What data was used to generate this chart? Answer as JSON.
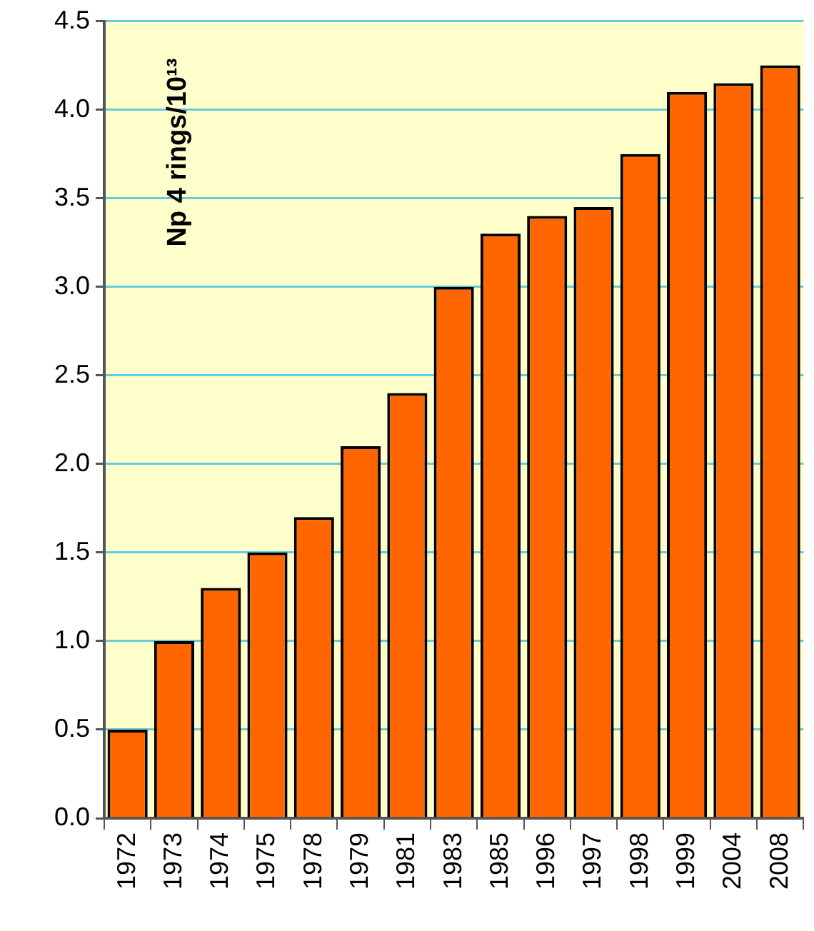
{
  "chart_data": {
    "type": "bar",
    "ylabel": "Np 4 rings/10¹³",
    "categories": [
      "1972",
      "1973",
      "1974",
      "1975",
      "1978",
      "1979",
      "1981",
      "1983",
      "1985",
      "1996",
      "1997",
      "1998",
      "1999",
      "2004",
      "2008"
    ],
    "values": [
      0.5,
      1.0,
      1.3,
      1.5,
      1.7,
      2.1,
      2.4,
      3.0,
      3.3,
      3.4,
      3.45,
      3.75,
      4.1,
      4.15,
      4.25
    ],
    "color": "#ff6600",
    "ylim": [
      0,
      4.5
    ],
    "yticks": [
      {
        "value": 0,
        "label": "0.0"
      },
      {
        "value": 0.5,
        "label": "0.5"
      },
      {
        "value": 1,
        "label": "1.0"
      },
      {
        "value": 1.5,
        "label": "1.5"
      },
      {
        "value": 2,
        "label": "2.0"
      },
      {
        "value": 2.5,
        "label": "2.5"
      },
      {
        "value": 3,
        "label": "3.0"
      },
      {
        "value": 3.5,
        "label": "3.5"
      },
      {
        "value": 4,
        "label": "4.0"
      },
      {
        "value": 4.5,
        "label": "4.5"
      }
    ],
    "grid": "y",
    "legend": false
  }
}
